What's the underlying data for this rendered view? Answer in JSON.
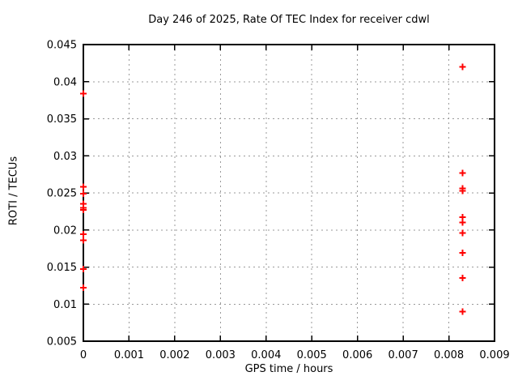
{
  "title": "Day 246 of 2025, Rate Of TEC Index for receiver cdwl",
  "colors": {
    "background": "#ffffff",
    "frame": "#000000",
    "grid": "#9a9a9a",
    "marker": "#ff0000",
    "text": "#000000"
  },
  "chart_data": {
    "type": "scatter",
    "title": "Day 246 of 2025, Rate Of TEC Index for receiver cdwl",
    "xlabel": "GPS time / hours",
    "ylabel": "ROTI / TECUs",
    "xlim": [
      0,
      0.009
    ],
    "ylim": [
      0.005,
      0.045
    ],
    "xticks": {
      "values": [
        0,
        0.001,
        0.002,
        0.003,
        0.004,
        0.005,
        0.006,
        0.007,
        0.008,
        0.009
      ],
      "labels": [
        "0",
        "0.001",
        "0.002",
        "0.003",
        "0.004",
        "0.005",
        "0.006",
        "0.007",
        "0.008",
        "0.009"
      ]
    },
    "yticks": {
      "values": [
        0.005,
        0.01,
        0.015,
        0.02,
        0.025,
        0.03,
        0.035,
        0.04,
        0.045
      ],
      "labels": [
        "0.005",
        "0.01",
        "0.015",
        "0.02",
        "0.025",
        "0.03",
        "0.035",
        "0.04",
        "0.045"
      ]
    },
    "grid": true,
    "legend": "none",
    "marker": {
      "shape": "plus",
      "color": "#ff0000",
      "size": 9
    },
    "series": [
      {
        "name": "ROTI",
        "color": "#ff0000",
        "points": [
          [
            0,
            0.0384
          ],
          [
            0,
            0.0258
          ],
          [
            0,
            0.0249
          ],
          [
            0,
            0.0235
          ],
          [
            0,
            0.023
          ],
          [
            0,
            0.0227
          ],
          [
            0,
            0.0194
          ],
          [
            0,
            0.0186
          ],
          [
            0,
            0.0147
          ],
          [
            0,
            0.0122
          ],
          [
            0.0083,
            0.042
          ],
          [
            0.0083,
            0.0277
          ],
          [
            0.0083,
            0.0256
          ],
          [
            0.0083,
            0.0253
          ],
          [
            0.0083,
            0.0217
          ],
          [
            0.0083,
            0.021
          ],
          [
            0.0083,
            0.0196
          ],
          [
            0.0083,
            0.0169
          ],
          [
            0.0083,
            0.0135
          ],
          [
            0.0083,
            0.009
          ]
        ]
      }
    ]
  }
}
